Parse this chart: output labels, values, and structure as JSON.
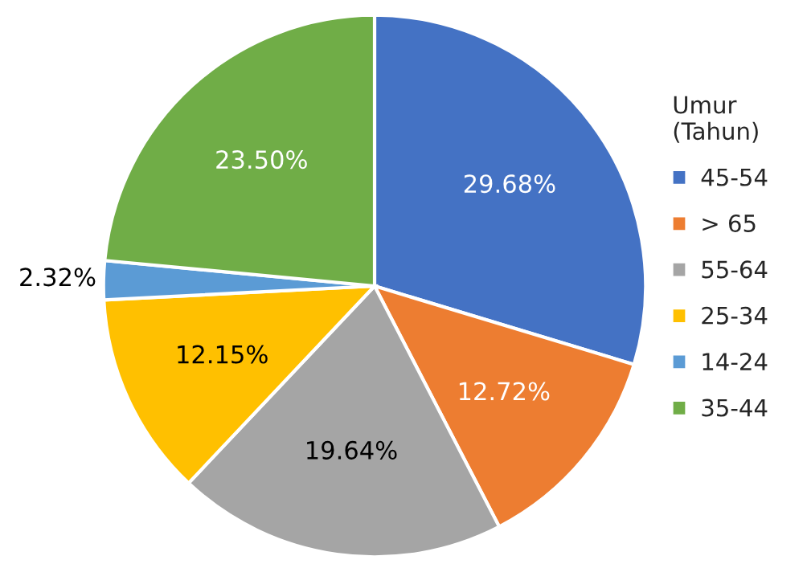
{
  "chart_data": {
    "type": "pie",
    "legend_title": "Umur\n(Tahun)",
    "legend": "right",
    "categories": [
      "45-54",
      "> 65",
      "55-64",
      "25-34",
      "14-24",
      "35-44"
    ],
    "values": [
      29.68,
      12.72,
      19.64,
      12.15,
      2.32,
      23.5
    ],
    "colors": [
      "#4472c4",
      "#ed7d31",
      "#a5a5a5",
      "#ffc000",
      "#5b9bd5",
      "#70ad47"
    ],
    "value_labels": [
      "29.68%",
      "12.72%",
      "19.64%",
      "12.15%",
      "2.32%",
      "23.50%"
    ]
  }
}
